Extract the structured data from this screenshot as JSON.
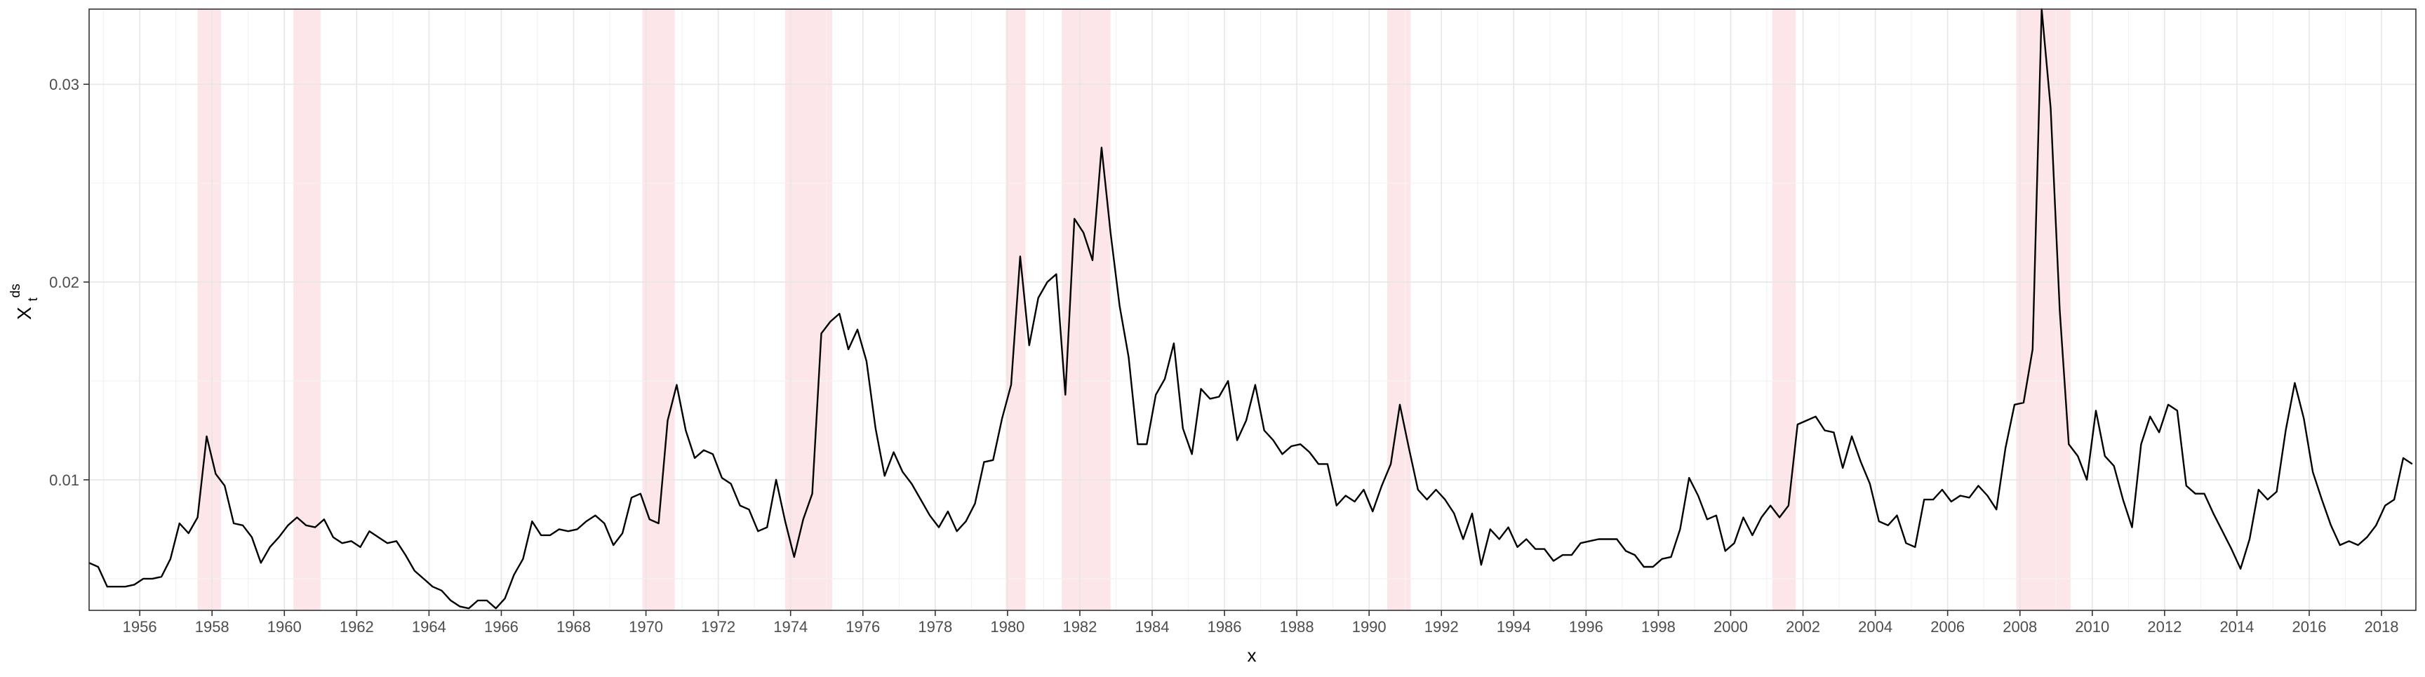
{
  "chart_data": {
    "type": "line",
    "title": "",
    "xlabel": "x",
    "ylabel": "X_t^ds",
    "ylabel_main": "X",
    "ylabel_sub": "t",
    "ylabel_sup": "ds",
    "xlim": [
      1954.6,
      2018.95
    ],
    "ylim": [
      0.0034,
      0.0338
    ],
    "grid": true,
    "legend": "none",
    "colors": {
      "line": "#000000",
      "recession": "#fde6ea",
      "grid": "#e6e6e6",
      "panel_border": "#333333"
    },
    "x_ticks": [
      1956,
      1958,
      1960,
      1962,
      1964,
      1966,
      1968,
      1970,
      1972,
      1974,
      1976,
      1978,
      1980,
      1982,
      1984,
      1986,
      1988,
      1990,
      1992,
      1994,
      1996,
      1998,
      2000,
      2002,
      2004,
      2006,
      2008,
      2010,
      2012,
      2014,
      2016,
      2018
    ],
    "x_tick_labels": [
      "1956",
      "1958",
      "1960",
      "1962",
      "1964",
      "1966",
      "1968",
      "1970",
      "1972",
      "1974",
      "1976",
      "1978",
      "1980",
      "1982",
      "1984",
      "1986",
      "1988",
      "1990",
      "1992",
      "1994",
      "1996",
      "1998",
      "2000",
      "2002",
      "2004",
      "2006",
      "2008",
      "2010",
      "2012",
      "2014",
      "2016",
      "2018"
    ],
    "y_ticks": [
      0.01,
      0.02,
      0.03
    ],
    "y_tick_labels": [
      "0.01",
      "0.02",
      "0.03"
    ],
    "recessions": [
      [
        1957.6,
        1958.25
      ],
      [
        1960.25,
        1961.0
      ],
      [
        1969.9,
        1970.8
      ],
      [
        1973.85,
        1975.15
      ],
      [
        1979.95,
        1980.5
      ],
      [
        1981.5,
        1982.85
      ],
      [
        1990.5,
        1991.15
      ],
      [
        2001.15,
        2001.8
      ],
      [
        2007.9,
        2009.4
      ]
    ],
    "series": [
      {
        "x": [
          1954.6,
          1954.85,
          1955.1,
          1955.35,
          1955.6,
          1955.85,
          1956.1,
          1956.35,
          1956.6,
          1956.85,
          1957.1,
          1957.35,
          1957.6,
          1957.85,
          1958.1,
          1958.35,
          1958.6,
          1958.85,
          1959.1,
          1959.35,
          1959.6,
          1959.85,
          1960.1,
          1960.35,
          1960.6,
          1960.85,
          1961.1,
          1961.35,
          1961.6,
          1961.85,
          1962.1,
          1962.35,
          1962.6,
          1962.85,
          1963.1,
          1963.35,
          1963.6,
          1963.85,
          1964.1,
          1964.35,
          1964.6,
          1964.85,
          1965.1,
          1965.35,
          1965.6,
          1965.85,
          1966.1,
          1966.35,
          1966.6,
          1966.85,
          1967.1,
          1967.35,
          1967.6,
          1967.85,
          1968.1,
          1968.35,
          1968.6,
          1968.85,
          1969.1,
          1969.35,
          1969.6,
          1969.85,
          1970.1,
          1970.35,
          1970.6,
          1970.85,
          1971.1,
          1971.35,
          1971.6,
          1971.85,
          1972.1,
          1972.35,
          1972.6,
          1972.85,
          1973.1,
          1973.35,
          1973.6,
          1973.85,
          1974.1,
          1974.35,
          1974.6,
          1974.85,
          1975.1,
          1975.35,
          1975.6,
          1975.85,
          1976.1,
          1976.35,
          1976.6,
          1976.85,
          1977.1,
          1977.35,
          1977.6,
          1977.85,
          1978.1,
          1978.35,
          1978.6,
          1978.85,
          1979.1,
          1979.35,
          1979.6,
          1979.85,
          1980.1,
          1980.35,
          1980.6,
          1980.85,
          1981.1,
          1981.35,
          1981.6,
          1981.85,
          1982.1,
          1982.35,
          1982.6,
          1982.85,
          1983.1,
          1983.35,
          1983.6,
          1983.85,
          1984.1,
          1984.35,
          1984.6,
          1984.85,
          1985.1,
          1985.35,
          1985.6,
          1985.85,
          1986.1,
          1986.35,
          1986.6,
          1986.85,
          1987.1,
          1987.35,
          1987.6,
          1987.85,
          1988.1,
          1988.35,
          1988.6,
          1988.85,
          1989.1,
          1989.35,
          1989.6,
          1989.85,
          1990.1,
          1990.35,
          1990.6,
          1990.85,
          1991.1,
          1991.35,
          1991.6,
          1991.85,
          1992.1,
          1992.35,
          1992.6,
          1992.85,
          1993.1,
          1993.35,
          1993.6,
          1993.85,
          1994.1,
          1994.35,
          1994.6,
          1994.85,
          1995.1,
          1995.35,
          1995.6,
          1995.85,
          1996.1,
          1996.35,
          1996.6,
          1996.85,
          1997.1,
          1997.35,
          1997.6,
          1997.85,
          1998.1,
          1998.35,
          1998.6,
          1998.85,
          1999.1,
          1999.35,
          1999.6,
          1999.85,
          2000.1,
          2000.35,
          2000.6,
          2000.85,
          2001.1,
          2001.35,
          2001.6,
          2001.85,
          2002.1,
          2002.35,
          2002.6,
          2002.85,
          2003.1,
          2003.35,
          2003.6,
          2003.85,
          2004.1,
          2004.35,
          2004.6,
          2004.85,
          2005.1,
          2005.35,
          2005.6,
          2005.85,
          2006.1,
          2006.35,
          2006.6,
          2006.85,
          2007.1,
          2007.35,
          2007.6,
          2007.85,
          2008.1,
          2008.35,
          2008.6,
          2008.85,
          2009.1,
          2009.35,
          2009.6,
          2009.85,
          2010.1,
          2010.35,
          2010.6,
          2010.85,
          2011.1,
          2011.35,
          2011.6,
          2011.85,
          2012.1,
          2012.35,
          2012.6,
          2012.85,
          2013.1,
          2013.35,
          2013.6,
          2013.85,
          2014.1,
          2014.35,
          2014.6,
          2014.85,
          2015.1,
          2015.35,
          2015.6,
          2015.85,
          2016.1,
          2016.35,
          2016.6,
          2016.85,
          2017.1,
          2017.35,
          2017.6,
          2017.85,
          2018.1,
          2018.35,
          2018.6,
          2018.85
        ],
        "y": [
          0.0058,
          0.0056,
          0.0046,
          0.0046,
          0.0046,
          0.0047,
          0.005,
          0.005,
          0.0051,
          0.006,
          0.0078,
          0.0073,
          0.0081,
          0.0122,
          0.0103,
          0.0097,
          0.0078,
          0.0077,
          0.0071,
          0.0058,
          0.0066,
          0.0071,
          0.0077,
          0.0081,
          0.0077,
          0.0076,
          0.008,
          0.0071,
          0.0068,
          0.0069,
          0.0066,
          0.0074,
          0.0071,
          0.0068,
          0.0069,
          0.0062,
          0.0054,
          0.005,
          0.0046,
          0.0044,
          0.0039,
          0.0036,
          0.0035,
          0.0039,
          0.0039,
          0.0035,
          0.004,
          0.0052,
          0.006,
          0.0079,
          0.0072,
          0.0072,
          0.0075,
          0.0074,
          0.0075,
          0.0079,
          0.0082,
          0.0078,
          0.0067,
          0.0073,
          0.0091,
          0.0093,
          0.008,
          0.0078,
          0.013,
          0.0148,
          0.0125,
          0.0111,
          0.0115,
          0.0113,
          0.0101,
          0.0098,
          0.0087,
          0.0085,
          0.0074,
          0.0076,
          0.01,
          0.0079,
          0.0061,
          0.008,
          0.0093,
          0.0174,
          0.018,
          0.0184,
          0.0166,
          0.0176,
          0.016,
          0.0126,
          0.0102,
          0.0114,
          0.0104,
          0.0098,
          0.009,
          0.0082,
          0.0076,
          0.0084,
          0.0074,
          0.0079,
          0.0088,
          0.0109,
          0.011,
          0.0131,
          0.0148,
          0.0213,
          0.0168,
          0.0192,
          0.02,
          0.0204,
          0.0143,
          0.0232,
          0.0225,
          0.0211,
          0.0268,
          0.0225,
          0.0188,
          0.0162,
          0.0118,
          0.0118,
          0.0143,
          0.0151,
          0.0169,
          0.0126,
          0.0113,
          0.0146,
          0.0141,
          0.0142,
          0.015,
          0.012,
          0.013,
          0.0148,
          0.0125,
          0.012,
          0.0113,
          0.0117,
          0.0118,
          0.0114,
          0.0108,
          0.0108,
          0.0087,
          0.0092,
          0.0089,
          0.0095,
          0.0084,
          0.0097,
          0.0108,
          0.0138,
          0.0116,
          0.0095,
          0.009,
          0.0095,
          0.009,
          0.0083,
          0.007,
          0.0083,
          0.0057,
          0.0075,
          0.007,
          0.0076,
          0.0066,
          0.007,
          0.0065,
          0.0065,
          0.0059,
          0.0062,
          0.0062,
          0.0068,
          0.0069,
          0.007,
          0.007,
          0.007,
          0.0064,
          0.0062,
          0.0056,
          0.0056,
          0.006,
          0.0061,
          0.0075,
          0.0101,
          0.0092,
          0.008,
          0.0082,
          0.0064,
          0.0068,
          0.0081,
          0.0072,
          0.0081,
          0.0087,
          0.0081,
          0.0087,
          0.0128,
          0.013,
          0.0132,
          0.0125,
          0.0124,
          0.0106,
          0.0122,
          0.0109,
          0.0098,
          0.0079,
          0.0077,
          0.0082,
          0.0068,
          0.0066,
          0.009,
          0.009,
          0.0095,
          0.0089,
          0.0092,
          0.0091,
          0.0097,
          0.0092,
          0.0085,
          0.0116,
          0.0138,
          0.0139,
          0.0166,
          0.0338,
          0.0288,
          0.0186,
          0.0118,
          0.0112,
          0.01,
          0.0135,
          0.0112,
          0.0107,
          0.009,
          0.0076,
          0.0118,
          0.0132,
          0.0124,
          0.0138,
          0.0135,
          0.0097,
          0.0093,
          0.0093,
          0.0083,
          0.0074,
          0.0065,
          0.0055,
          0.007,
          0.0095,
          0.009,
          0.0094,
          0.0125,
          0.0149,
          0.0131,
          0.0104,
          0.009,
          0.0077,
          0.0067,
          0.0069,
          0.0067,
          0.0071,
          0.0077,
          0.0087,
          0.009,
          0.0111,
          0.0108
        ]
      }
    ]
  }
}
